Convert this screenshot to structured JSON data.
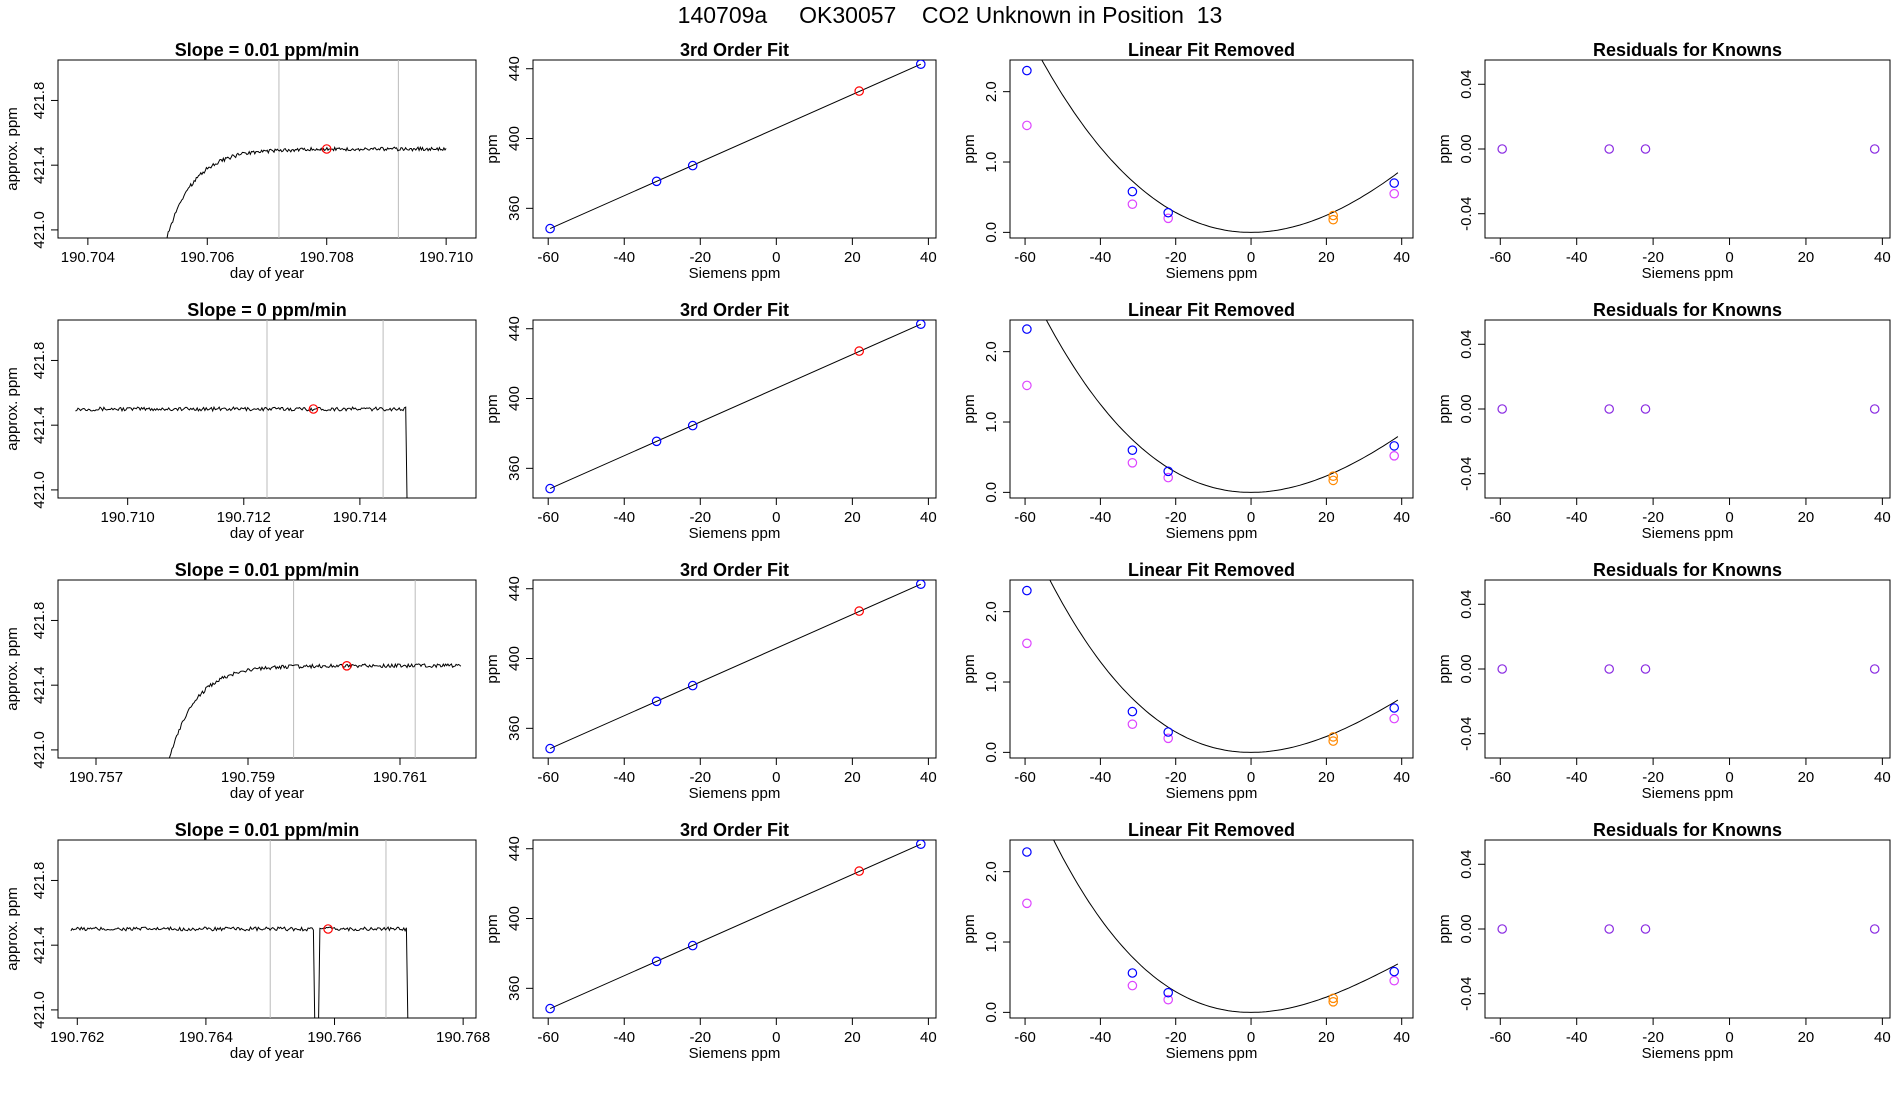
{
  "title": "140709a     OK30057    CO2 Unknown in Position  13",
  "labels": {
    "x_time": "day of year",
    "y_time": "approx. ppm",
    "x_siemens": "Siemens ppm",
    "y_ppm": "ppm",
    "fit_title": "3rd Order Fit",
    "linear_title": "Linear Fit Removed",
    "resid_title": "Residuals for Knowns"
  },
  "colors": {
    "known_points": "#0000ff",
    "unknown_point": "#ff0000",
    "linear_magenta": "#dd44ff",
    "linear_orange": "#ff8800",
    "residual_points": "#8a2be2",
    "window_lines": "#bbbbbb",
    "trace": "#000000"
  },
  "chart_data": [
    {
      "type": "line",
      "panel": "time-series",
      "row": 1,
      "title": "Slope =  0.01  ppm/min",
      "xlabel": "day of year",
      "ylabel": "approx. ppm",
      "xlim": [
        190.7035,
        190.7105
      ],
      "ylim": [
        420.95,
        422.05
      ],
      "xticks": [
        190.704,
        190.706,
        190.708,
        190.71
      ],
      "xtick_labels": [
        "190.704",
        "190.706",
        "190.708",
        "190.710"
      ],
      "yticks": [
        421.0,
        421.4,
        421.8
      ],
      "ytick_labels": [
        "421.0",
        "421.4",
        "421.8"
      ],
      "window_lines": [
        190.7072,
        190.7092
      ],
      "marker": {
        "x": 190.708,
        "y": 421.5
      },
      "trace": {
        "x_start": 190.7051,
        "x_end": 190.71,
        "plateau": 421.5,
        "rise_tau": 0.00045,
        "noise": 0.012,
        "dips": []
      }
    },
    {
      "type": "line",
      "panel": "time-series",
      "row": 2,
      "title": "Slope =  0  ppm/min",
      "xlabel": "day of year",
      "ylabel": "approx. ppm",
      "xlim": [
        190.7088,
        190.716
      ],
      "ylim": [
        420.95,
        422.05
      ],
      "xticks": [
        190.71,
        190.712,
        190.714
      ],
      "xtick_labels": [
        "190.710",
        "190.712",
        "190.714"
      ],
      "yticks": [
        421.0,
        421.4,
        421.8
      ],
      "ytick_labels": [
        "421.0",
        "421.4",
        "421.8"
      ],
      "window_lines": [
        190.7124,
        190.7144
      ],
      "marker": {
        "x": 190.7132,
        "y": 421.5
      },
      "trace": {
        "x_start": 190.7091,
        "x_end": 190.7149,
        "plateau": 421.5,
        "rise_tau": 0,
        "noise": 0.012,
        "dips": [
          {
            "x": 190.71485,
            "to": 420.95,
            "width": 0.00012
          }
        ]
      }
    },
    {
      "type": "line",
      "panel": "time-series",
      "row": 3,
      "title": "Slope =  0.01  ppm/min",
      "xlabel": "day of year",
      "ylabel": "approx. ppm",
      "xlim": [
        190.7565,
        190.762
      ],
      "ylim": [
        420.95,
        422.05
      ],
      "xticks": [
        190.757,
        190.759,
        190.761
      ],
      "xtick_labels": [
        "190.757",
        "190.759",
        "190.761"
      ],
      "yticks": [
        421.0,
        421.4,
        421.8
      ],
      "ytick_labels": [
        "421.0",
        "421.4",
        "421.8"
      ],
      "window_lines": [
        190.7596,
        190.7612
      ],
      "marker": {
        "x": 190.7603,
        "y": 421.52
      },
      "trace": {
        "x_start": 190.7578,
        "x_end": 190.7618,
        "plateau": 421.52,
        "rise_tau": 0.00035,
        "noise": 0.012,
        "dips": []
      }
    },
    {
      "type": "line",
      "panel": "time-series",
      "row": 4,
      "title": "Slope =  0.01  ppm/min",
      "xlabel": "day of year",
      "ylabel": "approx. ppm",
      "xlim": [
        190.7617,
        190.7682
      ],
      "ylim": [
        420.95,
        422.05
      ],
      "xticks": [
        190.762,
        190.764,
        190.766,
        190.768
      ],
      "xtick_labels": [
        "190.762",
        "190.764",
        "190.766",
        "190.768"
      ],
      "yticks": [
        421.0,
        421.4,
        421.8
      ],
      "ytick_labels": [
        "421.0",
        "421.4",
        "421.8"
      ],
      "window_lines": [
        190.765,
        190.7668
      ],
      "marker": {
        "x": 190.7659,
        "y": 421.5
      },
      "trace": {
        "x_start": 190.7619,
        "x_end": 190.7672,
        "plateau": 421.5,
        "rise_tau": 0,
        "noise": 0.012,
        "dips": [
          {
            "x": 190.76572,
            "to": 420.95,
            "width": 8e-05
          },
          {
            "x": 190.76718,
            "to": 420.95,
            "width": 0.0001
          }
        ]
      }
    },
    {
      "type": "scatter",
      "panel": "fit",
      "row": 1,
      "title": "3rd Order Fit",
      "xlabel": "Siemens ppm",
      "ylabel": "ppm",
      "xlim": [
        -64,
        42
      ],
      "ylim": [
        343,
        445
      ],
      "xticks": [
        -60,
        -40,
        -20,
        0,
        20,
        40
      ],
      "yticks": [
        360,
        400,
        440
      ],
      "knowns": {
        "x": [
          -59.5,
          -31.5,
          -22.0,
          38.0
        ],
        "y": [
          348.4,
          375.5,
          384.5,
          442.6
        ]
      },
      "unknown": {
        "x": [
          21.8
        ],
        "y": [
          427.2
        ]
      }
    },
    {
      "type": "scatter",
      "panel": "fit",
      "row": 2,
      "title": "3rd Order Fit",
      "xlabel": "Siemens ppm",
      "ylabel": "ppm",
      "xlim": [
        -64,
        42
      ],
      "ylim": [
        343,
        445
      ],
      "xticks": [
        -60,
        -40,
        -20,
        0,
        20,
        40
      ],
      "yticks": [
        360,
        400,
        440
      ],
      "knowns": {
        "x": [
          -59.5,
          -31.5,
          -22.0,
          38.0
        ],
        "y": [
          348.4,
          375.5,
          384.5,
          442.6
        ]
      },
      "unknown": {
        "x": [
          21.8
        ],
        "y": [
          427.2
        ]
      }
    },
    {
      "type": "scatter",
      "panel": "fit",
      "row": 3,
      "title": "3rd Order Fit",
      "xlabel": "Siemens ppm",
      "ylabel": "ppm",
      "xlim": [
        -64,
        42
      ],
      "ylim": [
        343,
        445
      ],
      "xticks": [
        -60,
        -40,
        -20,
        0,
        20,
        40
      ],
      "yticks": [
        360,
        400,
        440
      ],
      "knowns": {
        "x": [
          -59.5,
          -31.5,
          -22.0,
          38.0
        ],
        "y": [
          348.4,
          375.5,
          384.5,
          442.6
        ]
      },
      "unknown": {
        "x": [
          21.8
        ],
        "y": [
          427.2
        ]
      }
    },
    {
      "type": "scatter",
      "panel": "fit",
      "row": 4,
      "title": "3rd Order Fit",
      "xlabel": "Siemens ppm",
      "ylabel": "ppm",
      "xlim": [
        -64,
        42
      ],
      "ylim": [
        343,
        445
      ],
      "xticks": [
        -60,
        -40,
        -20,
        0,
        20,
        40
      ],
      "yticks": [
        360,
        400,
        440
      ],
      "knowns": {
        "x": [
          -59.5,
          -31.5,
          -22.0,
          38.0
        ],
        "y": [
          348.4,
          375.5,
          384.5,
          442.6
        ]
      },
      "unknown": {
        "x": [
          21.8
        ],
        "y": [
          427.2
        ]
      }
    },
    {
      "type": "scatter",
      "panel": "linear-removed",
      "row": 1,
      "title": "Linear Fit Removed",
      "xlabel": "Siemens ppm",
      "ylabel": "ppm",
      "xlim": [
        -64,
        43
      ],
      "ylim": [
        -0.08,
        2.45
      ],
      "xticks": [
        -60,
        -40,
        -20,
        0,
        20,
        40
      ],
      "yticks": [
        0.0,
        1.0,
        2.0
      ],
      "curve": {
        "a": 0.000655,
        "b": -2.5e-06
      },
      "blue": {
        "x": [
          -59.5,
          -31.5,
          -22.0,
          38.0
        ],
        "y": [
          2.3,
          0.58,
          0.28,
          0.7
        ]
      },
      "magenta": {
        "x": [
          -59.5,
          -31.5,
          -22.0,
          38.0
        ],
        "y": [
          1.52,
          0.4,
          0.2,
          0.55
        ]
      },
      "orange": {
        "x": [
          21.8,
          21.8
        ],
        "y": [
          0.24,
          0.18
        ]
      }
    },
    {
      "type": "scatter",
      "panel": "linear-removed",
      "row": 2,
      "title": "Linear Fit Removed",
      "xlabel": "Siemens ppm",
      "ylabel": "ppm",
      "xlim": [
        -64,
        43
      ],
      "ylim": [
        -0.08,
        2.45
      ],
      "xticks": [
        -60,
        -40,
        -20,
        0,
        20,
        40
      ],
      "yticks": [
        0.0,
        1.0,
        2.0
      ],
      "curve": {
        "a": 0.00065,
        "b": -3.3e-06
      },
      "blue": {
        "x": [
          -59.5,
          -31.5,
          -22.0,
          38.0
        ],
        "y": [
          2.32,
          0.6,
          0.3,
          0.66
        ]
      },
      "magenta": {
        "x": [
          -59.5,
          -31.5,
          -22.0,
          38.0
        ],
        "y": [
          1.52,
          0.42,
          0.21,
          0.52
        ]
      },
      "orange": {
        "x": [
          21.8,
          21.8
        ],
        "y": [
          0.23,
          0.17
        ]
      }
    },
    {
      "type": "scatter",
      "panel": "linear-removed",
      "row": 3,
      "title": "Linear Fit Removed",
      "xlabel": "Siemens ppm",
      "ylabel": "ppm",
      "xlim": [
        -64,
        43
      ],
      "ylim": [
        -0.08,
        2.45
      ],
      "xticks": [
        -60,
        -40,
        -20,
        0,
        20,
        40
      ],
      "yticks": [
        0.0,
        1.0,
        2.0
      ],
      "curve": {
        "a": 0.000645,
        "b": -4e-06
      },
      "blue": {
        "x": [
          -59.5,
          -31.5,
          -22.0,
          38.0
        ],
        "y": [
          2.3,
          0.58,
          0.29,
          0.63
        ]
      },
      "magenta": {
        "x": [
          -59.5,
          -31.5,
          -22.0,
          38.0
        ],
        "y": [
          1.55,
          0.4,
          0.2,
          0.48
        ]
      },
      "orange": {
        "x": [
          21.8,
          21.8
        ],
        "y": [
          0.22,
          0.16
        ]
      }
    },
    {
      "type": "scatter",
      "panel": "linear-removed",
      "row": 4,
      "title": "Linear Fit Removed",
      "xlabel": "Siemens ppm",
      "ylabel": "ppm",
      "xlim": [
        -64,
        43
      ],
      "ylim": [
        -0.08,
        2.45
      ],
      "xticks": [
        -60,
        -40,
        -20,
        0,
        20,
        40
      ],
      "yticks": [
        0.0,
        1.0,
        2.0
      ],
      "curve": {
        "a": 0.00064,
        "b": -4.8e-06
      },
      "blue": {
        "x": [
          -59.5,
          -31.5,
          -22.0,
          38.0
        ],
        "y": [
          2.28,
          0.56,
          0.28,
          0.58
        ]
      },
      "magenta": {
        "x": [
          -59.5,
          -31.5,
          -22.0,
          38.0
        ],
        "y": [
          1.55,
          0.38,
          0.18,
          0.45
        ]
      },
      "orange": {
        "x": [
          21.8,
          21.8
        ],
        "y": [
          0.2,
          0.15
        ]
      }
    },
    {
      "type": "scatter",
      "panel": "residuals",
      "row": 1,
      "title": "Residuals for Knowns",
      "xlabel": "Siemens ppm",
      "ylabel": "ppm",
      "xlim": [
        -64,
        42
      ],
      "ylim": [
        -0.055,
        0.055
      ],
      "xticks": [
        -60,
        -40,
        -20,
        0,
        20,
        40
      ],
      "yticks": [
        -0.04,
        0.0,
        0.04
      ],
      "ytick_labels": [
        "-0.04",
        "0.00",
        "0.04"
      ],
      "points": {
        "x": [
          -59.5,
          -31.5,
          -22.0,
          38.0
        ],
        "y": [
          0,
          0,
          0,
          0
        ]
      }
    },
    {
      "type": "scatter",
      "panel": "residuals",
      "row": 2,
      "title": "Residuals for Knowns",
      "xlabel": "Siemens ppm",
      "ylabel": "ppm",
      "xlim": [
        -64,
        42
      ],
      "ylim": [
        -0.055,
        0.055
      ],
      "xticks": [
        -60,
        -40,
        -20,
        0,
        20,
        40
      ],
      "yticks": [
        -0.04,
        0.0,
        0.04
      ],
      "ytick_labels": [
        "-0.04",
        "0.00",
        "0.04"
      ],
      "points": {
        "x": [
          -59.5,
          -31.5,
          -22.0,
          38.0
        ],
        "y": [
          0,
          0,
          0,
          0
        ]
      }
    },
    {
      "type": "scatter",
      "panel": "residuals",
      "row": 3,
      "title": "Residuals for Knowns",
      "xlabel": "Siemens ppm",
      "ylabel": "ppm",
      "xlim": [
        -64,
        42
      ],
      "ylim": [
        -0.055,
        0.055
      ],
      "xticks": [
        -60,
        -40,
        -20,
        0,
        20,
        40
      ],
      "yticks": [
        -0.04,
        0.0,
        0.04
      ],
      "ytick_labels": [
        "-0.04",
        "0.00",
        "0.04"
      ],
      "points": {
        "x": [
          -59.5,
          -31.5,
          -22.0,
          38.0
        ],
        "y": [
          0,
          0,
          0,
          0
        ]
      }
    },
    {
      "type": "scatter",
      "panel": "residuals",
      "row": 4,
      "title": "Residuals for Knowns",
      "xlabel": "Siemens ppm",
      "ylabel": "ppm",
      "xlim": [
        -64,
        42
      ],
      "ylim": [
        -0.055,
        0.055
      ],
      "xticks": [
        -60,
        -40,
        -20,
        0,
        20,
        40
      ],
      "yticks": [
        -0.04,
        0.0,
        0.04
      ],
      "ytick_labels": [
        "-0.04",
        "0.00",
        "0.04"
      ],
      "points": {
        "x": [
          -59.5,
          -31.5,
          -22.0,
          38.0
        ],
        "y": [
          0,
          0,
          0,
          0
        ]
      }
    }
  ]
}
